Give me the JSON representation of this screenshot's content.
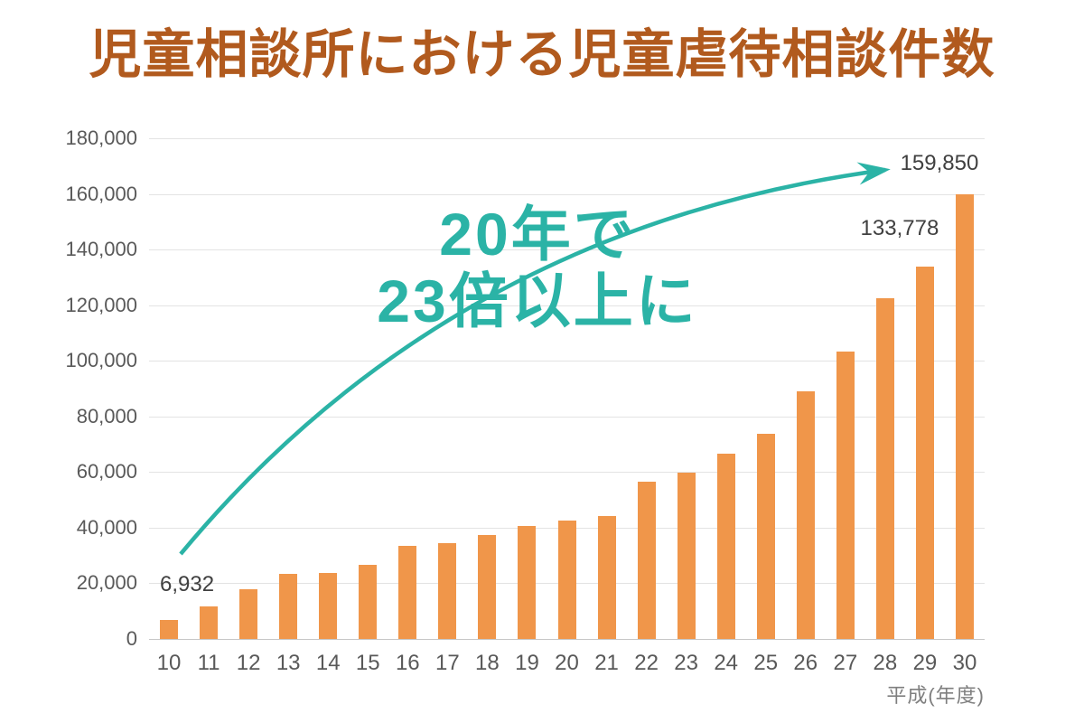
{
  "title": {
    "text": "児童相談所における児童虐待相談件数",
    "color": "#B15A1E"
  },
  "annotation": {
    "line1": "20年で",
    "line2": "23倍以上に",
    "color": "#2BB3A6"
  },
  "chart_data": {
    "type": "bar",
    "title": "児童相談所における児童虐待相談件数",
    "categories": [
      "10",
      "11",
      "12",
      "13",
      "14",
      "15",
      "16",
      "17",
      "18",
      "19",
      "20",
      "21",
      "22",
      "23",
      "24",
      "25",
      "26",
      "27",
      "28",
      "29",
      "30"
    ],
    "values": [
      6932,
      11631,
      17725,
      23274,
      23738,
      26569,
      33408,
      34472,
      37323,
      40639,
      42664,
      44211,
      56384,
      59919,
      66701,
      73802,
      88931,
      103286,
      122575,
      133778,
      159850
    ],
    "xlabel": "平成(年度)",
    "ylabel": "",
    "ylim": [
      0,
      180000
    ],
    "ytick_step": 20000,
    "ytick_labels": [
      "0",
      "20,000",
      "40,000",
      "60,000",
      "80,000",
      "100,000",
      "120,000",
      "140,000",
      "160,000",
      "180,000"
    ],
    "grid": true,
    "legend": false,
    "bar_color": "#F0964A",
    "annotation_text": "20年で23倍以上に",
    "data_labels": [
      {
        "index": 0,
        "text": "6,932"
      },
      {
        "index": 19,
        "text": "133,778"
      },
      {
        "index": 20,
        "text": "159,850"
      }
    ]
  },
  "colors": {
    "bar": "#F0964A",
    "teal": "#2BB3A6",
    "title": "#B15A1E",
    "tick_label": "#595959",
    "data_label": "#404040",
    "axis_unit": "#7F7F7F",
    "gridline": "#E3E3E3",
    "axis_line": "#C6C6C6",
    "background": "#FFFFFF"
  }
}
